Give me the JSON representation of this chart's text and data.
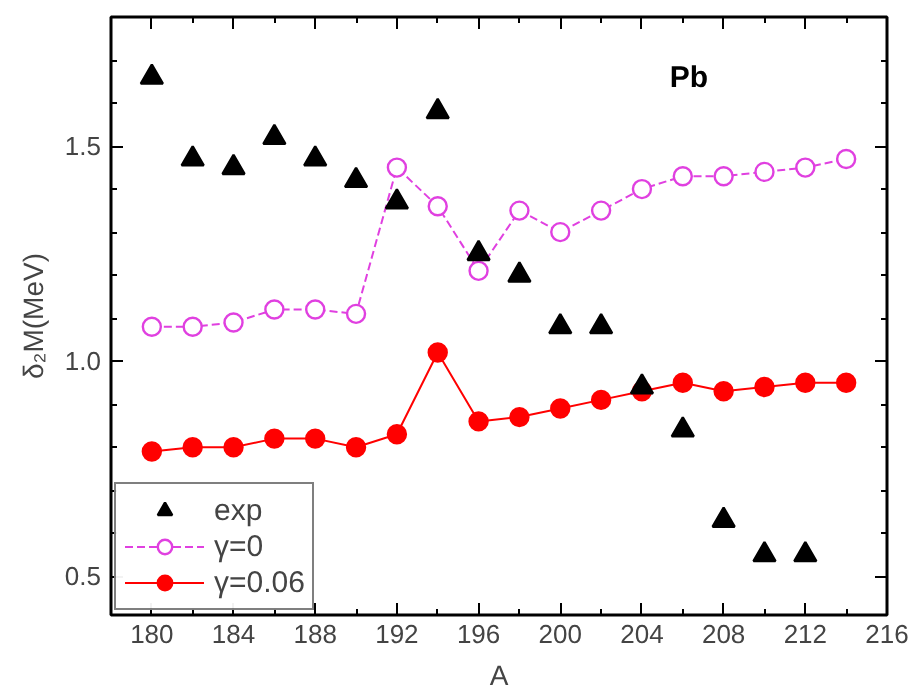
{
  "chart_data": {
    "type": "line",
    "xlabel": "A",
    "ylabel": "δ₂M(MeV)",
    "annotations": [
      "Pb"
    ],
    "xlim": [
      178,
      216
    ],
    "ylim": [
      0.41,
      1.8
    ],
    "xticks": [
      180,
      184,
      188,
      192,
      196,
      200,
      204,
      208,
      212,
      216
    ],
    "yticks": [
      {
        "value": 0.5,
        "label": "0.5"
      },
      {
        "value": 1.0,
        "label": "1.0"
      },
      {
        "value": 1.5,
        "label": "1.5"
      }
    ],
    "grid": false,
    "legend": "bottom left",
    "series": [
      {
        "name": "exp",
        "type": "scatter",
        "marker": "triangle",
        "color": "#000000",
        "x": [
          180,
          182,
          184,
          186,
          188,
          190,
          192,
          194,
          196,
          198,
          200,
          202,
          204,
          206,
          208,
          210,
          212
        ],
        "values": [
          1.66,
          1.47,
          1.45,
          1.52,
          1.47,
          1.42,
          1.37,
          1.58,
          1.25,
          1.2,
          1.08,
          1.08,
          0.94,
          0.84,
          0.63,
          0.55,
          0.55
        ]
      },
      {
        "name": "γ=0",
        "marker": "circle",
        "line_style": "dashed",
        "color": "#e040e0",
        "x": [
          180,
          182,
          184,
          186,
          188,
          190,
          192,
          194,
          196,
          198,
          200,
          202,
          204,
          206,
          208,
          210,
          212,
          214
        ],
        "values": [
          1.08,
          1.08,
          1.09,
          1.12,
          1.12,
          1.11,
          1.45,
          1.36,
          1.21,
          1.35,
          1.3,
          1.35,
          1.4,
          1.43,
          1.43,
          1.44,
          1.45,
          1.47
        ]
      },
      {
        "name": "γ=0.06",
        "marker": "circle",
        "line_style": "solid",
        "color": "#ff0000",
        "x": [
          180,
          182,
          184,
          186,
          188,
          190,
          192,
          194,
          196,
          198,
          200,
          202,
          204,
          206,
          208,
          210,
          212,
          214
        ],
        "values": [
          0.79,
          0.8,
          0.8,
          0.82,
          0.82,
          0.8,
          0.83,
          1.02,
          0.86,
          0.87,
          0.89,
          0.91,
          0.93,
          0.95,
          0.93,
          0.94,
          0.95,
          0.95
        ]
      }
    ]
  }
}
